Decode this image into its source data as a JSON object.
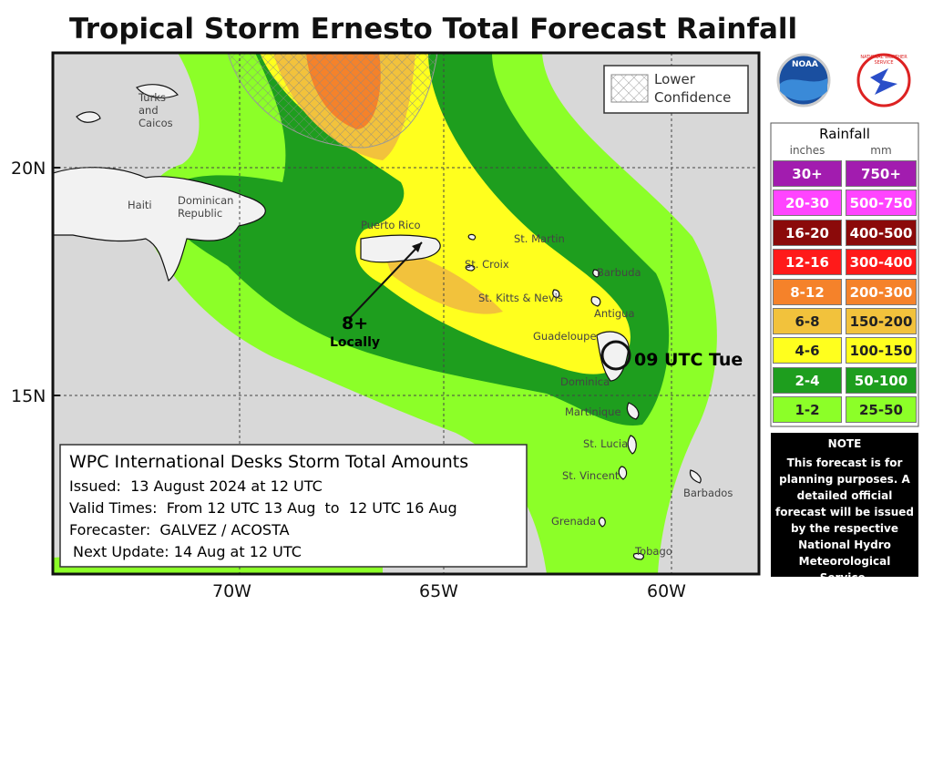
{
  "title": "Tropical Storm Ernesto Total Forecast Rainfall",
  "logos": [
    "NOAA",
    "NATIONAL WEATHER SERVICE"
  ],
  "map": {
    "lat_labels": [
      "20N",
      "15N"
    ],
    "lon_labels": [
      "70W",
      "65W",
      "60W"
    ],
    "confidence_label": "Lower Confidence",
    "place_labels": [
      "Turks and Caicos",
      "Haiti",
      "Dominican Republic",
      "Puerto Rico",
      "St. Martin",
      "St. Croix",
      "Barbuda",
      "St. Kitts & Nevis",
      "Antigua",
      "Guadeloupe",
      "Dominica",
      "Martinique",
      "St. Lucia",
      "St. Vincent",
      "Barbados",
      "Grenada",
      "Tobago"
    ],
    "annotation": {
      "value": "8+",
      "note": "Locally"
    },
    "storm_label": "09 UTC Tue"
  },
  "info_box": {
    "title": "WPC International Desks Storm Total Amounts",
    "lines": [
      "Issued:  13 August 2024 at 12 UTC",
      "Valid Times:  From 12 UTC 13 Aug  to  12 UTC 16 Aug",
      "Forecaster:  GALVEZ / ACOSTA",
      "Next Update: 14 Aug at 12 UTC"
    ]
  },
  "legend": {
    "title": "Rainfall",
    "units": [
      "inches",
      "mm"
    ],
    "rows": [
      {
        "inches": "30+",
        "mm": "750+",
        "color": "#a21caf",
        "text_color": "#ffffff"
      },
      {
        "inches": "20-30",
        "mm": "500-750",
        "color": "#ff44ff",
        "text_color": "#ffffff"
      },
      {
        "inches": "16-20",
        "mm": "400-500",
        "color": "#8b0a0a",
        "text_color": "#ffffff"
      },
      {
        "inches": "12-16",
        "mm": "300-400",
        "color": "#ff1a1a",
        "text_color": "#ffffff"
      },
      {
        "inches": "8-12",
        "mm": "200-300",
        "color": "#f5822a",
        "text_color": "#ffffff"
      },
      {
        "inches": "6-8",
        "mm": "150-200",
        "color": "#f2c23c",
        "text_color": "#222222"
      },
      {
        "inches": "4-6",
        "mm": "100-150",
        "color": "#ffff1e",
        "text_color": "#222222"
      },
      {
        "inches": "2-4",
        "mm": "50-100",
        "color": "#1e9e1e",
        "text_color": "#ffffff"
      },
      {
        "inches": "1-2",
        "mm": "25-50",
        "color": "#8cff28",
        "text_color": "#222222"
      }
    ]
  },
  "note": {
    "title": "NOTE",
    "text": "This forecast is for planning purposes. A detailed official forecast will be issued by the respective National Hydro Meteorological Service."
  }
}
